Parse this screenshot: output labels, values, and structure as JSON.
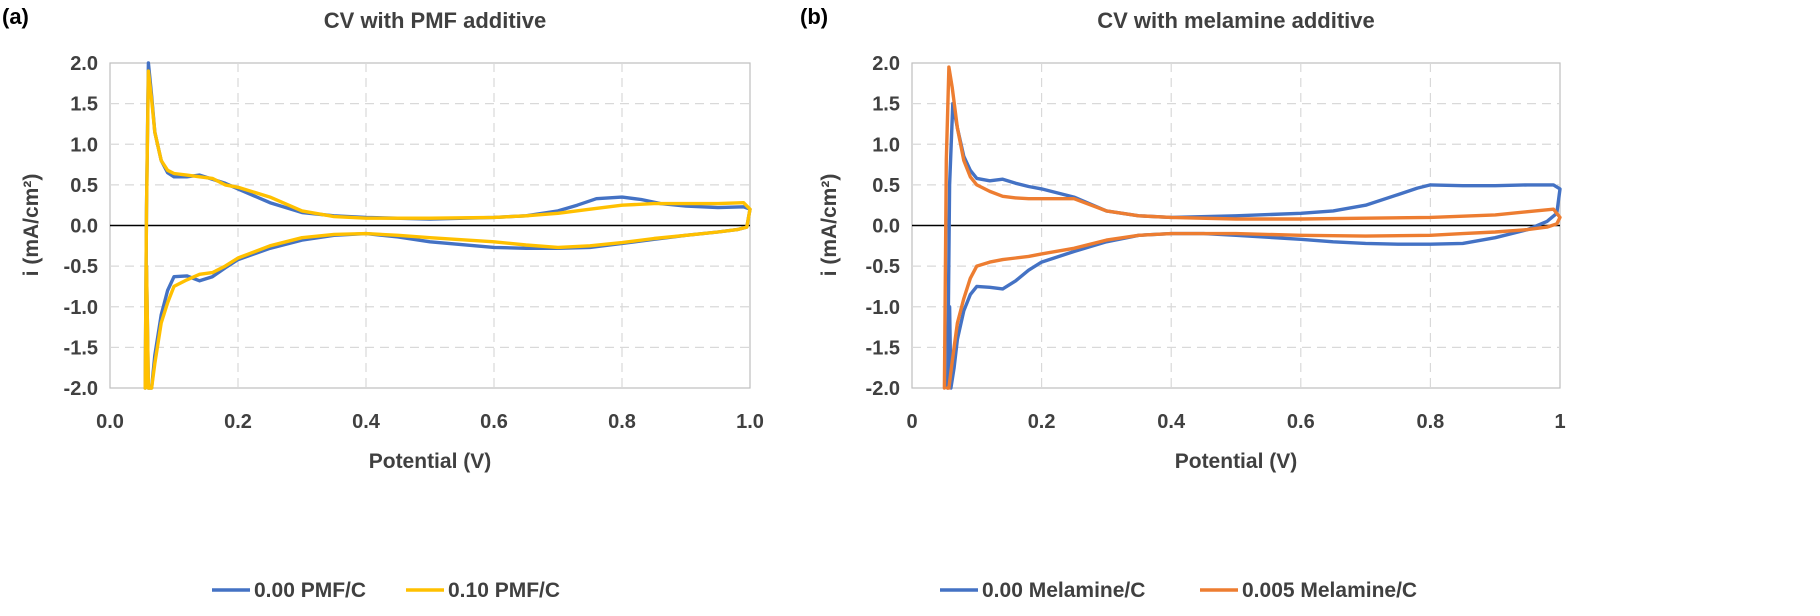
{
  "chart_data": [
    {
      "panel_label": "(a)",
      "type": "line",
      "title": "CV with PMF additive",
      "xlabel": "Potential (V)",
      "ylabel": "i (mA/cm²)",
      "xlim": [
        0,
        1.0
      ],
      "ylim": [
        -2.0,
        2.0
      ],
      "xticks": [
        "0.0",
        "0.2",
        "0.4",
        "0.6",
        "0.8",
        "1.0"
      ],
      "yticks": [
        "2.0",
        "1.5",
        "1.0",
        "0.5",
        "0.0",
        "-0.5",
        "-1.0",
        "-1.5",
        "-2.0"
      ],
      "grid": true,
      "legend_position": "bottom",
      "series": [
        {
          "name": "0.00 PMF/C",
          "color": "#4472C4",
          "x": [
            0.055,
            0.057,
            0.06,
            0.065,
            0.07,
            0.08,
            0.09,
            0.1,
            0.12,
            0.14,
            0.16,
            0.18,
            0.2,
            0.25,
            0.3,
            0.35,
            0.4,
            0.5,
            0.6,
            0.65,
            0.7,
            0.73,
            0.76,
            0.8,
            0.83,
            0.86,
            0.9,
            0.95,
            0.99,
            1.0,
            0.995,
            0.98,
            0.95,
            0.9,
            0.85,
            0.8,
            0.75,
            0.7,
            0.65,
            0.6,
            0.5,
            0.45,
            0.4,
            0.35,
            0.3,
            0.25,
            0.2,
            0.18,
            0.16,
            0.14,
            0.12,
            0.1,
            0.09,
            0.08,
            0.07,
            0.065,
            0.06,
            0.057,
            0.055
          ],
          "y": [
            -2.0,
            0.2,
            2.0,
            1.6,
            1.15,
            0.8,
            0.65,
            0.6,
            0.6,
            0.62,
            0.57,
            0.52,
            0.45,
            0.28,
            0.16,
            0.12,
            0.1,
            0.08,
            0.1,
            0.12,
            0.18,
            0.25,
            0.33,
            0.35,
            0.32,
            0.27,
            0.24,
            0.22,
            0.23,
            0.2,
            -0.02,
            -0.05,
            -0.08,
            -0.12,
            -0.17,
            -0.22,
            -0.27,
            -0.28,
            -0.28,
            -0.27,
            -0.2,
            -0.14,
            -0.1,
            -0.12,
            -0.18,
            -0.28,
            -0.42,
            -0.52,
            -0.63,
            -0.68,
            -0.62,
            -0.63,
            -0.8,
            -1.1,
            -1.6,
            -2.0,
            -2.0,
            -0.5,
            -2.0
          ]
        },
        {
          "name": "0.10 PMF/C",
          "color": "#FFC000",
          "x": [
            0.055,
            0.057,
            0.06,
            0.065,
            0.07,
            0.08,
            0.09,
            0.1,
            0.12,
            0.14,
            0.16,
            0.18,
            0.2,
            0.25,
            0.3,
            0.35,
            0.4,
            0.5,
            0.6,
            0.65,
            0.7,
            0.75,
            0.8,
            0.85,
            0.9,
            0.95,
            0.99,
            1.0,
            0.995,
            0.98,
            0.95,
            0.9,
            0.85,
            0.8,
            0.75,
            0.7,
            0.65,
            0.6,
            0.5,
            0.45,
            0.4,
            0.35,
            0.3,
            0.25,
            0.2,
            0.18,
            0.16,
            0.14,
            0.12,
            0.1,
            0.09,
            0.08,
            0.07,
            0.065,
            0.06,
            0.057,
            0.055
          ],
          "y": [
            -2.0,
            0.2,
            1.9,
            1.55,
            1.15,
            0.8,
            0.68,
            0.64,
            0.62,
            0.6,
            0.58,
            0.5,
            0.47,
            0.35,
            0.18,
            0.11,
            0.09,
            0.09,
            0.1,
            0.12,
            0.15,
            0.2,
            0.25,
            0.27,
            0.27,
            0.27,
            0.28,
            0.2,
            -0.02,
            -0.05,
            -0.08,
            -0.12,
            -0.16,
            -0.21,
            -0.25,
            -0.27,
            -0.24,
            -0.2,
            -0.15,
            -0.12,
            -0.1,
            -0.11,
            -0.15,
            -0.25,
            -0.4,
            -0.5,
            -0.58,
            -0.6,
            -0.67,
            -0.75,
            -0.95,
            -1.2,
            -1.7,
            -2.0,
            -2.0,
            -0.5,
            -2.0
          ]
        }
      ]
    },
    {
      "panel_label": "(b)",
      "type": "line",
      "title": "CV with melamine additive",
      "xlabel": "Potential (V)",
      "ylabel": "i (mA/cm²)",
      "xlim": [
        0,
        1
      ],
      "ylim": [
        -2.0,
        2.0
      ],
      "xticks": [
        "0",
        "0.2",
        "0.4",
        "0.6",
        "0.8",
        "1"
      ],
      "yticks": [
        "2.0",
        "1.5",
        "1.0",
        "0.5",
        "0.0",
        "-0.5",
        "-1.0",
        "-1.5",
        "-2.0"
      ],
      "grid": true,
      "legend_position": "bottom",
      "series": [
        {
          "name": "0.00 Melamine/C",
          "color": "#4472C4",
          "x": [
            0.055,
            0.058,
            0.063,
            0.07,
            0.08,
            0.09,
            0.1,
            0.12,
            0.14,
            0.16,
            0.18,
            0.2,
            0.25,
            0.3,
            0.35,
            0.4,
            0.5,
            0.6,
            0.65,
            0.7,
            0.75,
            0.78,
            0.8,
            0.85,
            0.9,
            0.95,
            0.99,
            1.0,
            0.995,
            0.98,
            0.95,
            0.9,
            0.85,
            0.8,
            0.75,
            0.7,
            0.65,
            0.6,
            0.5,
            0.45,
            0.4,
            0.35,
            0.3,
            0.25,
            0.2,
            0.18,
            0.16,
            0.14,
            0.12,
            0.1,
            0.09,
            0.08,
            0.07,
            0.065,
            0.06,
            0.058,
            0.055
          ],
          "y": [
            -2.0,
            0.5,
            1.5,
            1.2,
            0.85,
            0.68,
            0.58,
            0.55,
            0.57,
            0.52,
            0.48,
            0.45,
            0.35,
            0.18,
            0.12,
            0.1,
            0.12,
            0.15,
            0.18,
            0.25,
            0.38,
            0.46,
            0.5,
            0.49,
            0.49,
            0.5,
            0.5,
            0.45,
            0.15,
            0.05,
            -0.05,
            -0.15,
            -0.22,
            -0.23,
            -0.23,
            -0.22,
            -0.2,
            -0.17,
            -0.12,
            -0.1,
            -0.1,
            -0.12,
            -0.2,
            -0.32,
            -0.45,
            -0.55,
            -0.68,
            -0.78,
            -0.76,
            -0.75,
            -0.85,
            -1.05,
            -1.4,
            -1.75,
            -2.0,
            -1.0,
            -2.0
          ]
        },
        {
          "name": "0.005 Melamine/C",
          "color": "#ED7D31",
          "x": [
            0.05,
            0.053,
            0.057,
            0.062,
            0.07,
            0.08,
            0.09,
            0.1,
            0.12,
            0.14,
            0.16,
            0.18,
            0.2,
            0.25,
            0.3,
            0.35,
            0.4,
            0.5,
            0.6,
            0.7,
            0.8,
            0.9,
            0.95,
            0.99,
            1.0,
            0.995,
            0.98,
            0.95,
            0.9,
            0.85,
            0.8,
            0.7,
            0.6,
            0.5,
            0.4,
            0.35,
            0.3,
            0.25,
            0.2,
            0.18,
            0.16,
            0.14,
            0.12,
            0.1,
            0.09,
            0.08,
            0.07,
            0.065,
            0.06,
            0.057,
            0.055
          ],
          "y": [
            -2.0,
            0.8,
            1.95,
            1.7,
            1.2,
            0.8,
            0.6,
            0.5,
            0.42,
            0.36,
            0.34,
            0.33,
            0.33,
            0.33,
            0.18,
            0.12,
            0.1,
            0.08,
            0.08,
            0.09,
            0.1,
            0.13,
            0.17,
            0.2,
            0.1,
            0.02,
            -0.02,
            -0.05,
            -0.08,
            -0.1,
            -0.12,
            -0.13,
            -0.12,
            -0.1,
            -0.1,
            -0.12,
            -0.18,
            -0.28,
            -0.35,
            -0.38,
            -0.4,
            -0.42,
            -0.45,
            -0.5,
            -0.65,
            -0.9,
            -1.2,
            -1.5,
            -1.8,
            -2.0,
            -2.0
          ]
        }
      ]
    }
  ]
}
